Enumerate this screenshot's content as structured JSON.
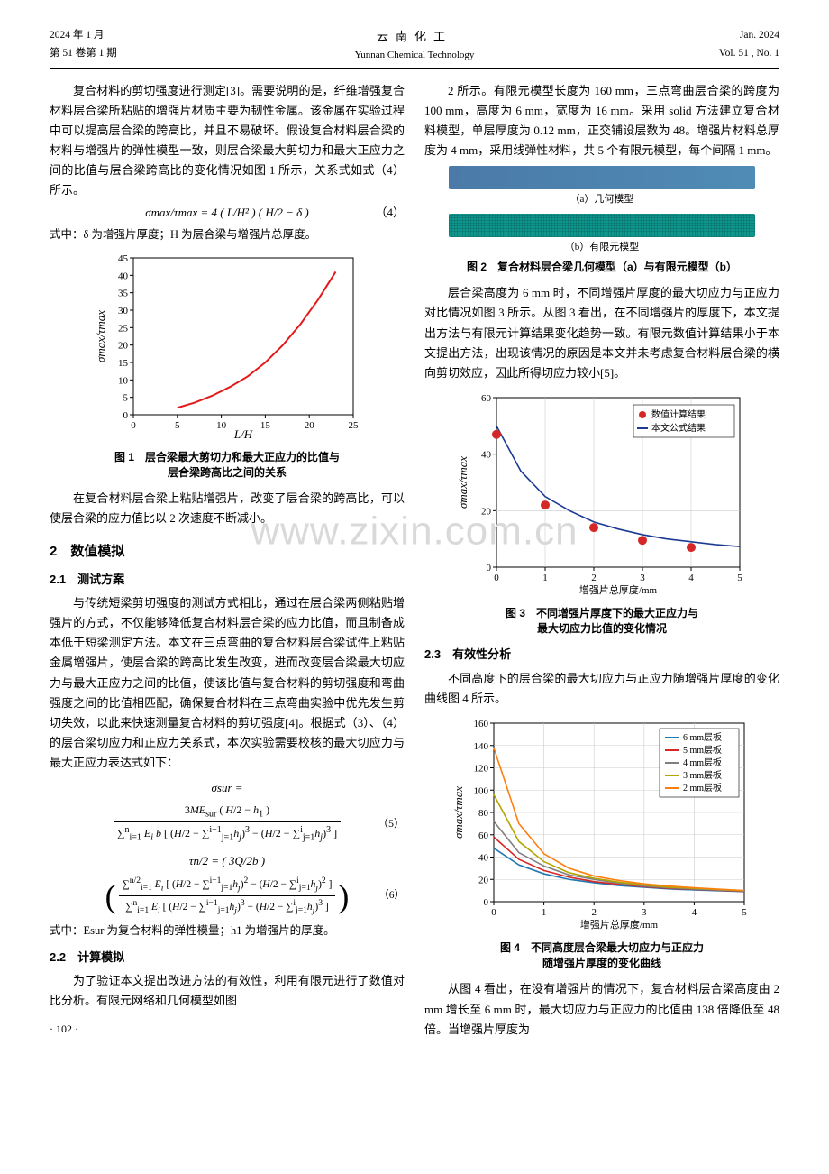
{
  "header": {
    "left_line1": "2024 年 1 月",
    "left_line2": "第 51 卷第 1 期",
    "center_cn": "云南化工",
    "center_en": "Yunnan Chemical Technology",
    "right_line1": "Jan. 2024",
    "right_line2": "Vol. 51 , No. 1"
  },
  "left_col": {
    "para1": "复合材料的剪切强度进行测定[3]。需要说明的是，纤维增强复合材料层合梁所粘贴的增强片材质主要为韧性金属。该金属在实验过程中可以提高层合梁的跨高比，并且不易破坏。假设复合材料层合梁的材料与增强片的弹性模型一致，则层合梁最大剪切力和最大正应力之间的比值与层合梁跨高比的变化情况如图 1 所示，关系式如式（4）所示。",
    "eq4": "σmax/τmax = 4 ( L/H² ) ( H/2 − δ )",
    "eq4_num": "（4）",
    "eq4_note": "式中：δ 为增强片厚度；H 为层合梁与增强片总厚度。",
    "fig1_caption": "图 1 层合梁最大剪切力和最大正应力的比值与\n层合梁跨高比之间的关系",
    "para2": "在复合材料层合梁上粘贴增强片，改变了层合梁的跨高比，可以使层合梁的应力值比以 2 次速度不断减小。",
    "sec2": "2 数值模拟",
    "sub21": "2.1 测试方案",
    "para21": "与传统短梁剪切强度的测试方式相比，通过在层合梁两侧粘贴增强片的方式，不仅能够降低复合材料层合梁的应力比值，而且制备成本低于短梁测定方法。本文在三点弯曲的复合材料层合梁试件上粘贴金属增强片，使层合梁的跨高比发生改变，进而改变层合梁最大切应力与最大正应力之间的比值，使该比值与复合材料的剪切强度和弯曲强度之间的比值相匹配，确保复合材料在三点弯曲实验中优先发生剪切失效，以此来快速测量复合材料的剪切强度[4]。根据式（3）、（4）的层合梁切应力和正应力关系式，本次实验需要校核的最大切应力与最大正应力表达式如下：",
    "eq5_top": "σsur =",
    "eq5_num": "（5）",
    "eq6_mid": "τn/2 = ( 3Q/2b )",
    "eq6_num": "（6）",
    "eq_note": "式中：Esur 为复合材料的弹性模量；h1 为增强片的厚度。",
    "sub22": "2.2 计算模拟",
    "para22": "为了验证本文提出改进方法的有效性，利用有限元进行了数值对比分析。有限元网络和几何模型如图",
    "pagenum": "· 102 ·"
  },
  "right_col": {
    "para1": "2 所示。有限元模型长度为 160 mm，三点弯曲层合梁的跨度为 100 mm，高度为 6 mm，宽度为 16 mm。采用 solid 方法建立复合材料模型，单层厚度为 0.12 mm，正交铺设层数为 48。增强片材料总厚度为 4 mm，采用线弹性材料，共 5 个有限元模型，每个间隔 1 mm。",
    "fig2a_label": "（a）几何模型",
    "fig2b_label": "（b）有限元模型",
    "fig2_caption": "图 2 复合材料层合梁几何模型（a）与有限元模型（b）",
    "para2": "层合梁高度为 6 mm 时，不同增强片厚度的最大切应力与正应力对比情况如图 3 所示。从图 3 看出，在不同增强片的厚度下，本文提出方法与有限元计算结果变化趋势一致。有限元数值计算结果小于本文提出方法，出现该情况的原因是本文并未考虑复合材料层合梁的横向剪切效应，因此所得切应力较小[5]。",
    "fig3_caption": "图 3 不同增强片厚度下的最大正应力与\n最大切应力比值的变化情况",
    "sub23": "2.3 有效性分析",
    "para23": "不同高度下的层合梁的最大切应力与正应力随增强片厚度的变化曲线图 4 所示。",
    "fig4_caption": "图 4 不同高度层合梁最大切应力与正应力\n随增强片厚度的变化曲线",
    "para4": "从图 4 看出，在没有增强片的情况下，复合材料层合梁高度由 2 mm 增长至 6 mm 时，最大切应力与正应力的比值由 138 倍降低至 48 倍。当增强片厚度为"
  },
  "chart1": {
    "type": "line",
    "xlabel": "L/H",
    "ylabel": "σmax/τmax",
    "xlim": [
      0,
      25
    ],
    "xtick_step": 5,
    "ylim": [
      0,
      45
    ],
    "ytick_step": 5,
    "line_color": "#e31a1c",
    "line_width": 2,
    "background_color": "#ffffff",
    "x": [
      5,
      7,
      9,
      11,
      13,
      15,
      17,
      19,
      20,
      21,
      22,
      23
    ],
    "y": [
      2,
      3.5,
      5.5,
      8,
      11,
      15,
      20,
      26,
      29.5,
      33,
      37,
      41
    ]
  },
  "chart3": {
    "type": "line+scatter",
    "xlabel": "增强片总厚度/mm",
    "ylabel": "σmax/τmax",
    "xlim": [
      0,
      5
    ],
    "xtick_step": 1,
    "ylim": [
      0,
      60
    ],
    "ytick_step": 20,
    "background_color": "#ffffff",
    "grid_color": "#cccccc",
    "line_color": "#1b3a93",
    "line_width": 1.6,
    "marker_color": "#d62728",
    "marker_size": 5,
    "legend": {
      "pos": "top-right",
      "items": [
        "数值计算结果",
        "本文公式结果"
      ]
    },
    "scatter_x": [
      0,
      1,
      2,
      3,
      4
    ],
    "scatter_y": [
      47,
      22,
      14,
      9.5,
      7
    ],
    "line_x": [
      0,
      0.5,
      1,
      1.5,
      2,
      2.5,
      3,
      3.5,
      4,
      4.5,
      5
    ],
    "line_y": [
      50,
      34,
      25,
      20,
      16,
      13.5,
      11.5,
      10,
      9,
      8,
      7.3
    ]
  },
  "chart4": {
    "type": "multiline",
    "xlabel": "增强片总厚度/mm",
    "ylabel": "σmax/τmax",
    "xlim": [
      0,
      5
    ],
    "xtick_step": 1,
    "ylim": [
      0,
      160
    ],
    "ytick_step": 20,
    "background_color": "#ffffff",
    "grid_color": "#cccccc",
    "legend_pos": "top-right",
    "series": [
      {
        "label": "6 mm层板",
        "color": "#1f77b4",
        "x": [
          0,
          0.5,
          1,
          1.5,
          2,
          2.5,
          3,
          3.5,
          4,
          5
        ],
        "y": [
          48,
          33,
          25,
          20,
          17,
          14.5,
          13,
          11.5,
          10.5,
          9
        ]
      },
      {
        "label": "5 mm层板",
        "color": "#d62728",
        "x": [
          0,
          0.5,
          1,
          1.5,
          2,
          2.5,
          3,
          3.5,
          4,
          5
        ],
        "y": [
          58,
          38,
          28,
          22,
          18,
          15.5,
          13.5,
          12,
          11,
          9.2
        ]
      },
      {
        "label": "4 mm层板",
        "color": "#7f7f7f",
        "x": [
          0,
          0.5,
          1,
          1.5,
          2,
          2.5,
          3,
          3.5,
          4,
          5
        ],
        "y": [
          72,
          44,
          32,
          24,
          20,
          16.5,
          14,
          12.5,
          11.3,
          9.5
        ]
      },
      {
        "label": "3 mm层板",
        "color": "#b5a400",
        "x": [
          0,
          0.5,
          1,
          1.5,
          2,
          2.5,
          3,
          3.5,
          4,
          5
        ],
        "y": [
          96,
          54,
          36,
          26,
          21,
          17.5,
          15,
          13,
          12,
          9.8
        ]
      },
      {
        "label": "2 mm层板",
        "color": "#ff7f0e",
        "x": [
          0,
          0.5,
          1,
          1.5,
          2,
          2.5,
          3,
          3.5,
          4,
          5
        ],
        "y": [
          138,
          70,
          43,
          30,
          23,
          19,
          16,
          14,
          12.5,
          10
        ]
      }
    ]
  },
  "fig2": {
    "a_color1": "#4b7aa8",
    "a_color2": "#4f8cb5",
    "b_color": "#0f968c"
  },
  "watermark": "www.zixin.com.cn"
}
